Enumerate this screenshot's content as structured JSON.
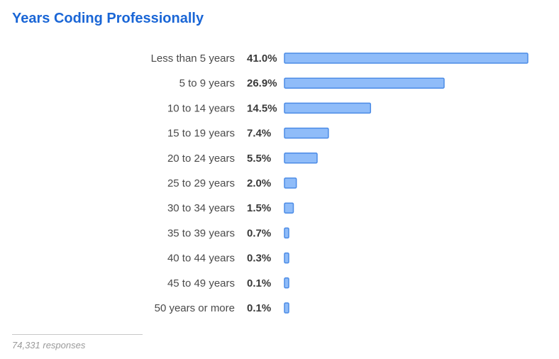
{
  "chart_data": {
    "type": "bar",
    "orientation": "horizontal",
    "title": "Years Coding Professionally",
    "categories": [
      "Less than 5 years",
      "5 to 9 years",
      "10 to 14 years",
      "15 to 19 years",
      "20 to 24 years",
      "25 to 29 years",
      "30 to 34 years",
      "35 to 39 years",
      "40 to 44 years",
      "45 to 49 years",
      "50 years or more"
    ],
    "values": [
      41.0,
      26.9,
      14.5,
      7.4,
      5.5,
      2.0,
      1.5,
      0.7,
      0.3,
      0.1,
      0.1
    ],
    "value_labels": [
      "41.0%",
      "26.9%",
      "14.5%",
      "7.4%",
      "5.5%",
      "2.0%",
      "1.5%",
      "0.7%",
      "0.3%",
      "0.1%",
      "0.1%"
    ],
    "grid": false,
    "legend": "none",
    "bar_fill": "#8fbcf9",
    "bar_stroke": "#4b8be6"
  },
  "footer": {
    "responses": "74,331 responses"
  },
  "colors": {
    "title": "#1a66d6"
  }
}
